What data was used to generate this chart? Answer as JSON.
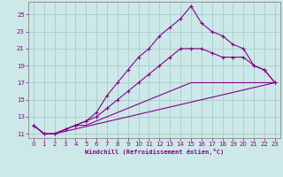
{
  "xlabel": "Windchill (Refroidissement éolien,°C)",
  "bg_color": "#cce8e8",
  "line_color": "#880088",
  "grid_color": "#aacccc",
  "x_ticks": [
    0,
    1,
    2,
    3,
    4,
    5,
    6,
    7,
    8,
    9,
    10,
    11,
    12,
    13,
    14,
    15,
    16,
    17,
    18,
    19,
    20,
    21,
    22,
    23
  ],
  "y_ticks": [
    11,
    13,
    15,
    17,
    19,
    21,
    23,
    25
  ],
  "xlim": [
    -0.5,
    23.5
  ],
  "ylim": [
    10.5,
    26.5
  ],
  "lines": [
    {
      "x": [
        0,
        1,
        2,
        3,
        4,
        5,
        6,
        7,
        8,
        9,
        10,
        11,
        12,
        13,
        14,
        15,
        16,
        17,
        18,
        19,
        20,
        21,
        22,
        23
      ],
      "y": [
        12,
        11,
        11,
        11.5,
        12,
        12.5,
        13.5,
        15.5,
        17,
        18.5,
        20,
        21,
        22.5,
        23.5,
        24.5,
        26,
        24,
        23,
        22.5,
        21.5,
        21,
        19,
        18.5,
        17
      ],
      "marker": true
    },
    {
      "x": [
        0,
        1,
        2,
        3,
        4,
        5,
        6,
        7,
        8,
        9,
        10,
        11,
        12,
        13,
        14,
        15,
        16,
        17,
        18,
        19,
        20,
        21,
        22,
        23
      ],
      "y": [
        12,
        11,
        11,
        11.5,
        12,
        12.5,
        13,
        14,
        15,
        16,
        17,
        18,
        19,
        20,
        21,
        21,
        21,
        20.5,
        20,
        20,
        20,
        19,
        18.5,
        17
      ],
      "marker": true
    },
    {
      "x": [
        0,
        1,
        2,
        3,
        4,
        5,
        6,
        7,
        8,
        9,
        10,
        11,
        12,
        13,
        14,
        15,
        16,
        17,
        18,
        19,
        20,
        21,
        22,
        23
      ],
      "y": [
        12,
        11,
        11,
        11.5,
        12,
        12,
        12.5,
        13,
        13.5,
        14,
        14.5,
        15,
        15.5,
        16,
        16.5,
        17,
        17,
        17,
        17,
        17,
        17,
        17,
        17,
        17
      ],
      "marker": false
    },
    {
      "x": [
        0,
        1,
        2,
        23
      ],
      "y": [
        12,
        11,
        11,
        17
      ],
      "marker": false
    }
  ]
}
